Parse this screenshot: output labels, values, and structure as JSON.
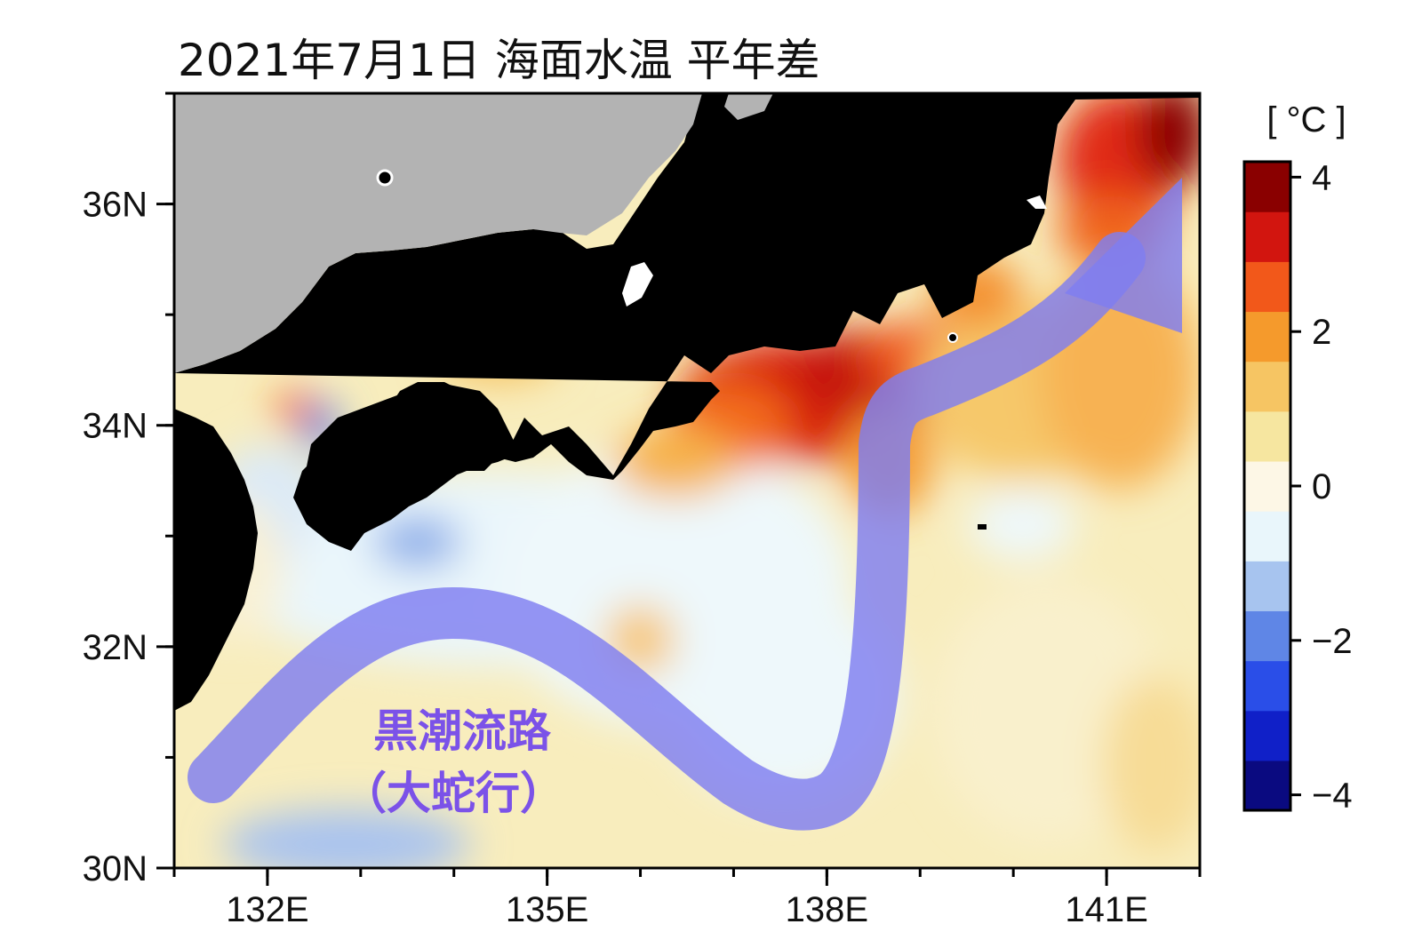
{
  "title": "2021年7月1日 海面水温 平年差",
  "map": {
    "lat_labels": [
      "36N",
      "34N",
      "32N",
      "30N"
    ],
    "lat_values": [
      36,
      34,
      32,
      30
    ],
    "lon_labels": [
      "132E",
      "135E",
      "138E",
      "141E"
    ],
    "lon_values": [
      132,
      135,
      138,
      141
    ],
    "lon_range": [
      131,
      142
    ],
    "lat_range": [
      30,
      37
    ]
  },
  "annotation": {
    "line1": "黒潮流路",
    "line2": "（大蛇行）",
    "color": "#7b52e8",
    "path_color": "#7f7ef0"
  },
  "colorbar": {
    "unit": "[ °C ]",
    "tick_labels": [
      "4",
      "2",
      "0",
      "−2",
      "−4"
    ],
    "tick_values": [
      4,
      2,
      0,
      -2,
      -4
    ],
    "range": [
      -4.2,
      4.2
    ],
    "colors": [
      "#0a0a80",
      "#1020c8",
      "#2a4ee8",
      "#5f86e6",
      "#a7c4ef",
      "#e9f6fb",
      "#fdf7e6",
      "#f6e6a0",
      "#f6c563",
      "#f59a2c",
      "#f2581a",
      "#d2150f",
      "#8a0000"
    ]
  }
}
